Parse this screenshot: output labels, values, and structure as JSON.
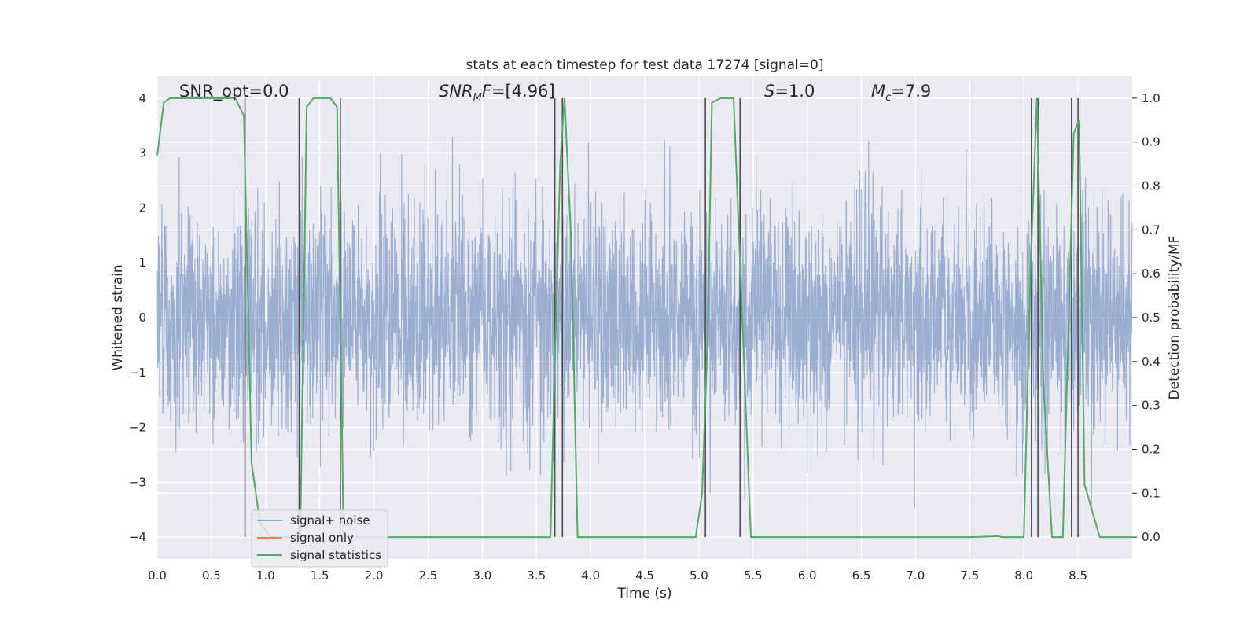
{
  "chart_data": {
    "type": "line",
    "title": "stats at each timestep for test data 17274 [signal=0]",
    "xlabel": "Time (s)",
    "ylabel": "Whitened strain",
    "y2label": "Detection probability/MF",
    "xlim": [
      0,
      9.0
    ],
    "ylim": [
      -4.4,
      4.4
    ],
    "y2lim": [
      -0.05,
      1.05
    ],
    "xticks": [
      "0.0",
      "0.5",
      "1.0",
      "1.5",
      "2.0",
      "2.5",
      "3.0",
      "3.5",
      "4.0",
      "4.5",
      "5.0",
      "5.5",
      "6.0",
      "6.5",
      "7.0",
      "7.5",
      "8.0",
      "8.5"
    ],
    "yticks": [
      "4",
      "3",
      "2",
      "1",
      "0",
      "−1",
      "−2",
      "−3",
      "−4"
    ],
    "y2ticks": [
      "1.0",
      "0.9",
      "0.8",
      "0.7",
      "0.6",
      "0.5",
      "0.4",
      "0.3",
      "0.2",
      "0.1",
      "0.0"
    ],
    "grid": true,
    "legend_position": "bottom-left",
    "annotations": {
      "snr_opt": "SNR_opt=0.0",
      "snr_mf": "=[4.96]",
      "s_val": "=1.0",
      "mc": "=7.9"
    },
    "colors": {
      "noise": "#4c72b0",
      "signal_only": "#dd8452",
      "stats": "#55a868",
      "background": "#eaeaf2",
      "vline": "#4d4d4d"
    },
    "series": [
      {
        "name": "signal+ noise",
        "description": "dense whitened strain noise, roughly ±2.5 envelope with spikes to ±4"
      },
      {
        "name": "signal only",
        "values": []
      },
      {
        "name": "signal statistics",
        "x": [
          0.0,
          0.06,
          0.12,
          0.5,
          0.72,
          0.8,
          0.87,
          0.95,
          1.05,
          1.2,
          1.32,
          1.38,
          1.44,
          1.6,
          1.66,
          1.72,
          1.8,
          2.0,
          3.0,
          3.63,
          3.67,
          3.72,
          3.76,
          3.82,
          3.88,
          4.0,
          4.5,
          4.97,
          5.03,
          5.08,
          5.12,
          5.2,
          5.32,
          5.4,
          5.48,
          5.6,
          6.5,
          7.5,
          7.76,
          7.8,
          8.0,
          8.06,
          8.12,
          8.18,
          8.26,
          8.36,
          8.46,
          8.51,
          8.56,
          8.7,
          9.0
        ],
        "y": [
          0.87,
          0.99,
          1.0,
          1.0,
          1.0,
          0.96,
          0.17,
          0.03,
          0.0,
          0.0,
          0.0,
          0.98,
          1.0,
          1.0,
          0.98,
          0.0,
          0.0,
          0.0,
          0.0,
          0.0,
          0.4,
          0.85,
          1.0,
          0.68,
          0.0,
          0.0,
          0.0,
          0.0,
          0.1,
          0.45,
          0.99,
          1.0,
          1.0,
          0.5,
          0.0,
          0.0,
          0.0,
          0.0,
          0.002,
          0.0,
          0.0,
          0.6,
          1.0,
          0.35,
          0.0,
          0.0,
          0.92,
          0.95,
          0.12,
          0.0,
          0.0
        ]
      }
    ],
    "vlines": [
      0.81,
      1.31,
      1.69,
      3.67,
      3.74,
      5.06,
      5.38,
      8.07,
      8.13,
      8.44,
      8.5
    ]
  }
}
